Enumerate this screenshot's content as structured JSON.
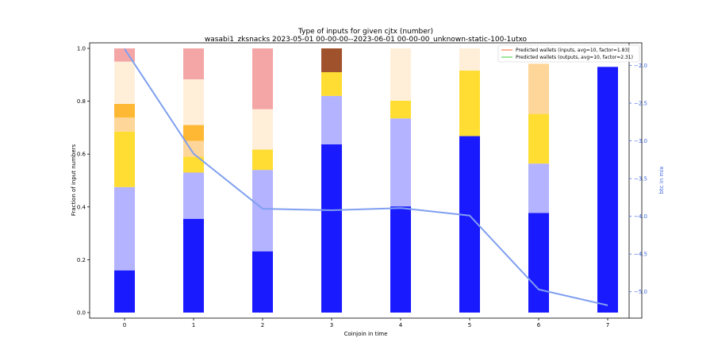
{
  "chart_data": {
    "type": "bar",
    "title": "Type of inputs for given cjtx (number)",
    "subtitle": "wasabi1_zksnacks 2023-05-01 00-00-00--2023-06-01 00-00-00_unknown-static-100-1utxo",
    "xlabel": "Coinjoin in time",
    "ylabel": "Fraction of input numbers",
    "y2label": "btc in mix",
    "categories": [
      "0",
      "1",
      "2",
      "3",
      "4",
      "5",
      "6",
      "7"
    ],
    "ylim": [
      0,
      1
    ],
    "y2lim": [
      -5.35,
      -1.7
    ],
    "yticks": [
      "0.0",
      "0.2",
      "0.4",
      "0.6",
      "0.8",
      "1.0"
    ],
    "y2ticks": [
      "−2.0",
      "−2.5",
      "−3.0",
      "−3.5",
      "−4.0",
      "−4.5",
      "−5.0"
    ],
    "series": [
      {
        "color": "#1a1aff",
        "values": [
          0.16,
          0.355,
          0.232,
          0.637,
          0.402,
          0.668,
          0.377,
          0.93
        ]
      },
      {
        "color": "#b3b3ff",
        "values": [
          0.315,
          0.175,
          0.308,
          0.183,
          0.333,
          0.0,
          0.187,
          0.0
        ]
      },
      {
        "color": "#ffdd33",
        "values": [
          0.21,
          0.06,
          0.077,
          0.09,
          0.067,
          0.248,
          0.188,
          0.0
        ]
      },
      {
        "color": "#ffd699",
        "values": [
          0.053,
          0.06,
          0.0,
          0.0,
          0.0,
          0.0,
          0.19,
          0.0
        ]
      },
      {
        "color": "#ffb833",
        "values": [
          0.052,
          0.06,
          0.0,
          0.0,
          0.0,
          0.0,
          0.0,
          0.0
        ]
      },
      {
        "color": "#ffefd9",
        "values": [
          0.16,
          0.173,
          0.153,
          0.0,
          0.198,
          0.084,
          0.0,
          0.0
        ]
      },
      {
        "color": "#f4a6a6",
        "values": [
          0.05,
          0.117,
          0.23,
          0.0,
          0.0,
          0.0,
          0.0,
          0.0
        ]
      },
      {
        "color": "#a0522d",
        "values": [
          0.0,
          0.0,
          0.0,
          0.09,
          0.0,
          0.0,
          0.0,
          0.0
        ]
      }
    ],
    "line": {
      "color": "#7f9ff0",
      "axis": "y2",
      "values": [
        -1.78,
        -3.17,
        -3.9,
        -3.92,
        -3.89,
        -3.99,
        -4.97,
        -5.18
      ]
    },
    "legend": {
      "placement": "top-right",
      "entries": [
        {
          "label": "Predicted wallets (inputs, avg=10, factor=1.83)",
          "color": "#ff7f50"
        },
        {
          "label": "Predicted wallets (outputs, avg=10, factor=2.31)",
          "color": "#5cd65c"
        }
      ]
    },
    "grid": false
  }
}
